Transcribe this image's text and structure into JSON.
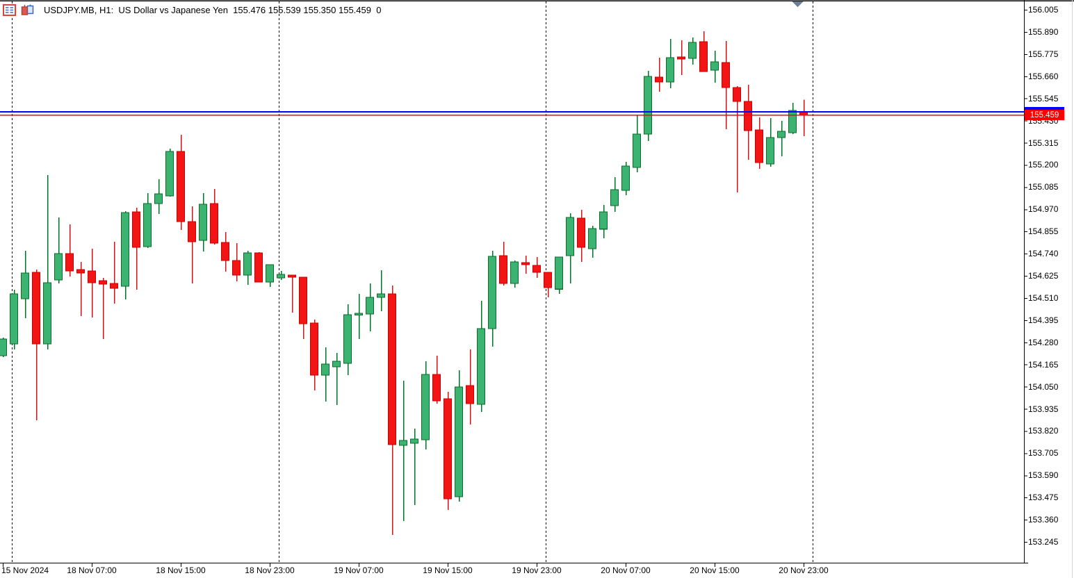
{
  "header": {
    "symbol": "USDJPY.MB",
    "period": "H1",
    "description": "US Dollar vs Japanese Yen",
    "quote_open": "155.476",
    "quote_high": "155.539",
    "quote_low": "155.350",
    "quote_close": "155.459",
    "volume": "0",
    "display": "USDJPY.MB, H1:  US Dollar vs Japanese Yen  155.476 155.539 155.350 155.459  0",
    "icons": [
      {
        "name": "quotes-panel-icon"
      },
      {
        "name": "candlestick-chart-icon"
      }
    ]
  },
  "chart_data": {
    "type": "candlestick",
    "title": "USDJPY.MB H1",
    "ylim": [
      153.137,
      156.055
    ],
    "grid": "day-separators-only",
    "current_price_label": "155.459",
    "price_lines": [
      {
        "name": "ask-line",
        "price": 155.475,
        "color": "#0000FF"
      },
      {
        "name": "bid-line",
        "price": 155.459,
        "color": "#FF0000"
      }
    ],
    "colors": {
      "bull_fill": "#3CB371",
      "bull_stroke": "#0E6B2E",
      "bear_fill": "#F21515",
      "bear_stroke": "#CC0000",
      "bear_wick": "#B22222",
      "ask_line": "#0000FF",
      "bid_line": "#FF0000",
      "badge_bg": "#FF0000",
      "badge_text": "#FFFFFF",
      "separator": "#000000",
      "axis": "#000000",
      "shift_marker": "#6E7F95"
    },
    "y_axis": [
      "156.005",
      "155.890",
      "155.775",
      "155.660",
      "155.545",
      "155.430",
      "155.315",
      "155.200",
      "155.085",
      "154.970",
      "154.855",
      "154.740",
      "154.625",
      "154.510",
      "154.395",
      "154.280",
      "154.165",
      "154.050",
      "153.935",
      "153.820",
      "153.705",
      "153.590",
      "153.475",
      "153.360",
      "153.245"
    ],
    "x_axis": [
      {
        "label": "15 Nov 2024",
        "candle_index": 0
      },
      {
        "label": "18 Nov 07:00",
        "candle_index": 8
      },
      {
        "label": "18 Nov 15:00",
        "candle_index": 16
      },
      {
        "label": "18 Nov 23:00",
        "candle_index": 24
      },
      {
        "label": "19 Nov 07:00",
        "candle_index": 32
      },
      {
        "label": "19 Nov 15:00",
        "candle_index": 40
      },
      {
        "label": "19 Nov 23:00",
        "candle_index": 48
      },
      {
        "label": "20 Nov 07:00",
        "candle_index": 56
      },
      {
        "label": "20 Nov 15:00",
        "candle_index": 64
      },
      {
        "label": "20 Nov 23:00",
        "candle_index": 72
      }
    ],
    "day_separators": [
      {
        "label": "18 Nov 00:00",
        "candle_index": 1
      },
      {
        "label": "19 Nov 00:00",
        "candle_index": 25
      },
      {
        "label": "20 Nov 00:00",
        "candle_index": 49
      },
      {
        "label": "21 Nov 00:00",
        "candle_index": 73
      }
    ],
    "candles": [
      {
        "t": "15 Nov 23:00",
        "o": 154.211,
        "h": 154.304,
        "l": 154.203,
        "c": 154.297
      },
      {
        "t": "18 Nov 00:00",
        "o": 154.272,
        "h": 154.553,
        "l": 154.243,
        "c": 154.531
      },
      {
        "t": "18 Nov 01:00",
        "o": 154.506,
        "h": 154.755,
        "l": 154.405,
        "c": 154.639
      },
      {
        "t": "18 Nov 02:00",
        "o": 154.643,
        "h": 154.657,
        "l": 153.875,
        "c": 154.272
      },
      {
        "t": "18 Nov 03:00",
        "o": 154.272,
        "h": 155.147,
        "l": 154.243,
        "c": 154.589
      },
      {
        "t": "18 Nov 04:00",
        "o": 154.603,
        "h": 154.928,
        "l": 154.585,
        "c": 154.74
      },
      {
        "t": "18 Nov 05:00",
        "o": 154.74,
        "h": 154.892,
        "l": 154.621,
        "c": 154.65
      },
      {
        "t": "18 Nov 06:00",
        "o": 154.657,
        "h": 154.697,
        "l": 154.416,
        "c": 154.639
      },
      {
        "t": "18 Nov 07:00",
        "o": 154.65,
        "h": 154.766,
        "l": 154.409,
        "c": 154.589
      },
      {
        "t": "18 Nov 08:00",
        "o": 154.6,
        "h": 154.614,
        "l": 154.297,
        "c": 154.582
      },
      {
        "t": "18 Nov 09:00",
        "o": 154.585,
        "h": 154.802,
        "l": 154.481,
        "c": 154.56
      },
      {
        "t": "18 Nov 10:00",
        "o": 154.571,
        "h": 154.96,
        "l": 154.503,
        "c": 154.953
      },
      {
        "t": "18 Nov 11:00",
        "o": 154.957,
        "h": 154.978,
        "l": 154.553,
        "c": 154.773
      },
      {
        "t": "18 Nov 12:00",
        "o": 154.776,
        "h": 155.054,
        "l": 154.769,
        "c": 155.0
      },
      {
        "t": "18 Nov 13:00",
        "o": 155.0,
        "h": 155.126,
        "l": 154.946,
        "c": 155.05
      },
      {
        "t": "18 Nov 14:00",
        "o": 155.039,
        "h": 155.284,
        "l": 155.036,
        "c": 155.27
      },
      {
        "t": "18 Nov 15:00",
        "o": 155.27,
        "h": 155.356,
        "l": 154.863,
        "c": 154.906
      },
      {
        "t": "18 Nov 16:00",
        "o": 154.906,
        "h": 154.985,
        "l": 154.585,
        "c": 154.802
      },
      {
        "t": "18 Nov 17:00",
        "o": 154.809,
        "h": 155.054,
        "l": 154.751,
        "c": 154.996
      },
      {
        "t": "18 Nov 18:00",
        "o": 155.0,
        "h": 155.075,
        "l": 154.787,
        "c": 154.794
      },
      {
        "t": "18 Nov 19:00",
        "o": 154.798,
        "h": 154.852,
        "l": 154.647,
        "c": 154.704
      },
      {
        "t": "18 Nov 20:00",
        "o": 154.704,
        "h": 154.794,
        "l": 154.596,
        "c": 154.629
      },
      {
        "t": "18 Nov 21:00",
        "o": 154.629,
        "h": 154.755,
        "l": 154.578,
        "c": 154.744
      },
      {
        "t": "18 Nov 22:00",
        "o": 154.744,
        "h": 154.748,
        "l": 154.593,
        "c": 154.593
      },
      {
        "t": "18 Nov 23:00",
        "o": 154.593,
        "h": 154.683,
        "l": 154.567,
        "c": 154.683
      },
      {
        "t": "19 Nov 00:00",
        "o": 154.614,
        "h": 154.65,
        "l": 154.603,
        "c": 154.632
      },
      {
        "t": "19 Nov 01:00",
        "o": 154.629,
        "h": 154.629,
        "l": 154.434,
        "c": 154.618
      },
      {
        "t": "19 Nov 02:00",
        "o": 154.618,
        "h": 154.618,
        "l": 154.297,
        "c": 154.376
      },
      {
        "t": "19 Nov 03:00",
        "o": 154.38,
        "h": 154.398,
        "l": 154.031,
        "c": 154.11
      },
      {
        "t": "19 Nov 04:00",
        "o": 154.11,
        "h": 154.254,
        "l": 153.973,
        "c": 154.167
      },
      {
        "t": "19 Nov 05:00",
        "o": 154.153,
        "h": 154.225,
        "l": 153.955,
        "c": 154.182
      },
      {
        "t": "19 Nov 06:00",
        "o": 154.171,
        "h": 154.477,
        "l": 154.11,
        "c": 154.423
      },
      {
        "t": "19 Nov 07:00",
        "o": 154.423,
        "h": 154.531,
        "l": 154.297,
        "c": 154.43
      },
      {
        "t": "19 Nov 08:00",
        "o": 154.427,
        "h": 154.585,
        "l": 154.337,
        "c": 154.513
      },
      {
        "t": "19 Nov 09:00",
        "o": 154.513,
        "h": 154.654,
        "l": 154.441,
        "c": 154.531
      },
      {
        "t": "19 Nov 10:00",
        "o": 154.531,
        "h": 154.574,
        "l": 153.281,
        "c": 153.749
      },
      {
        "t": "19 Nov 11:00",
        "o": 153.746,
        "h": 154.081,
        "l": 153.353,
        "c": 153.771
      },
      {
        "t": "19 Nov 12:00",
        "o": 153.757,
        "h": 153.832,
        "l": 153.436,
        "c": 153.778
      },
      {
        "t": "19 Nov 13:00",
        "o": 153.775,
        "h": 154.182,
        "l": 153.724,
        "c": 154.113
      },
      {
        "t": "19 Nov 14:00",
        "o": 154.113,
        "h": 154.211,
        "l": 153.962,
        "c": 153.976
      },
      {
        "t": "19 Nov 15:00",
        "o": 153.987,
        "h": 154.023,
        "l": 153.411,
        "c": 153.468
      },
      {
        "t": "19 Nov 16:00",
        "o": 153.479,
        "h": 154.135,
        "l": 153.454,
        "c": 154.048
      },
      {
        "t": "19 Nov 17:00",
        "o": 154.056,
        "h": 154.243,
        "l": 153.854,
        "c": 153.962
      },
      {
        "t": "19 Nov 18:00",
        "o": 153.958,
        "h": 154.495,
        "l": 153.918,
        "c": 154.351
      },
      {
        "t": "19 Nov 19:00",
        "o": 154.351,
        "h": 154.755,
        "l": 154.258,
        "c": 154.726
      },
      {
        "t": "19 Nov 20:00",
        "o": 154.729,
        "h": 154.802,
        "l": 154.574,
        "c": 154.585
      },
      {
        "t": "19 Nov 21:00",
        "o": 154.585,
        "h": 154.704,
        "l": 154.564,
        "c": 154.697
      },
      {
        "t": "19 Nov 22:00",
        "o": 154.693,
        "h": 154.729,
        "l": 154.636,
        "c": 154.683
      },
      {
        "t": "19 Nov 23:00",
        "o": 154.679,
        "h": 154.722,
        "l": 154.614,
        "c": 154.643
      },
      {
        "t": "20 Nov 00:00",
        "o": 154.643,
        "h": 154.643,
        "l": 154.513,
        "c": 154.564
      },
      {
        "t": "20 Nov 01:00",
        "o": 154.556,
        "h": 154.722,
        "l": 154.531,
        "c": 154.722
      },
      {
        "t": "20 Nov 02:00",
        "o": 154.729,
        "h": 154.95,
        "l": 154.586,
        "c": 154.928
      },
      {
        "t": "20 Nov 03:00",
        "o": 154.924,
        "h": 154.967,
        "l": 154.697,
        "c": 154.773
      },
      {
        "t": "20 Nov 04:00",
        "o": 154.766,
        "h": 154.884,
        "l": 154.719,
        "c": 154.87
      },
      {
        "t": "20 Nov 05:00",
        "o": 154.867,
        "h": 154.993,
        "l": 154.82,
        "c": 154.957
      },
      {
        "t": "20 Nov 06:00",
        "o": 154.989,
        "h": 155.137,
        "l": 154.957,
        "c": 155.072
      },
      {
        "t": "20 Nov 07:00",
        "o": 155.068,
        "h": 155.216,
        "l": 155.043,
        "c": 155.194
      },
      {
        "t": "20 Nov 08:00",
        "o": 155.187,
        "h": 155.457,
        "l": 155.162,
        "c": 155.36
      },
      {
        "t": "20 Nov 09:00",
        "o": 155.36,
        "h": 155.688,
        "l": 155.324,
        "c": 155.659
      },
      {
        "t": "20 Nov 10:00",
        "o": 155.656,
        "h": 155.756,
        "l": 155.58,
        "c": 155.63
      },
      {
        "t": "20 Nov 11:00",
        "o": 155.63,
        "h": 155.854,
        "l": 155.598,
        "c": 155.756
      },
      {
        "t": "20 Nov 12:00",
        "o": 155.76,
        "h": 155.846,
        "l": 155.666,
        "c": 155.749
      },
      {
        "t": "20 Nov 13:00",
        "o": 155.753,
        "h": 155.861,
        "l": 155.72,
        "c": 155.836
      },
      {
        "t": "20 Nov 14:00",
        "o": 155.839,
        "h": 155.893,
        "l": 155.684,
        "c": 155.684
      },
      {
        "t": "20 Nov 15:00",
        "o": 155.692,
        "h": 155.792,
        "l": 155.627,
        "c": 155.735
      },
      {
        "t": "20 Nov 16:00",
        "o": 155.731,
        "h": 155.843,
        "l": 155.385,
        "c": 155.601
      },
      {
        "t": "20 Nov 17:00",
        "o": 155.601,
        "h": 155.609,
        "l": 155.057,
        "c": 155.529
      },
      {
        "t": "20 Nov 18:00",
        "o": 155.529,
        "h": 155.616,
        "l": 155.227,
        "c": 155.378
      },
      {
        "t": "20 Nov 19:00",
        "o": 155.382,
        "h": 155.447,
        "l": 155.18,
        "c": 155.212
      },
      {
        "t": "20 Nov 20:00",
        "o": 155.205,
        "h": 155.443,
        "l": 155.191,
        "c": 155.342
      },
      {
        "t": "20 Nov 21:00",
        "o": 155.342,
        "h": 155.429,
        "l": 155.245,
        "c": 155.374
      },
      {
        "t": "20 Nov 22:00",
        "o": 155.367,
        "h": 155.522,
        "l": 155.36,
        "c": 155.483
      },
      {
        "t": "20 Nov 23:00",
        "o": 155.476,
        "h": 155.539,
        "l": 155.35,
        "c": 155.459
      }
    ]
  }
}
